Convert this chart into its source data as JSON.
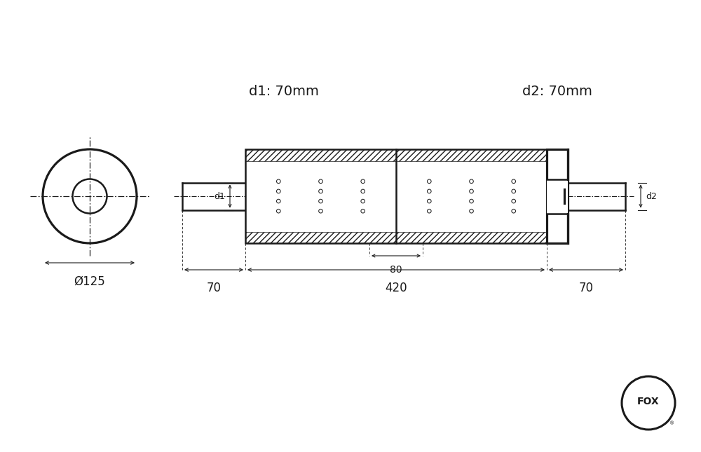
{
  "bg_color": "#ffffff",
  "line_color": "#1a1a1a",
  "label_d1": "d1: 70mm",
  "label_d2": "d2: 70mm",
  "label_dia": "Ø125",
  "dim_70_left": "70",
  "dim_420": "420",
  "dim_70_right": "70",
  "dim_80": "80",
  "dim_d1": "d1",
  "dim_d2": "d2",
  "fox_text": "FOX",
  "fig_width": 10.0,
  "fig_height": 6.45,
  "fox_blue": "#1a4a9a"
}
